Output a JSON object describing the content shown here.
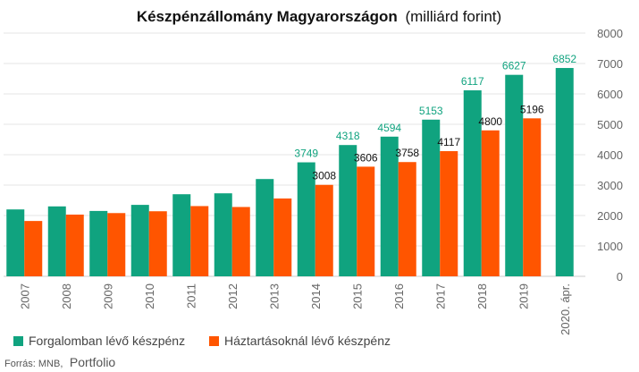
{
  "chart_data": {
    "type": "bar",
    "title": "Készpénzállomány Magyarországon",
    "title_suffix": "(milliárd forint)",
    "categories": [
      "2007",
      "2008",
      "2009",
      "2010",
      "2011",
      "2012",
      "2013",
      "2014",
      "2015",
      "2016",
      "2017",
      "2018",
      "2019",
      "2020. ápr."
    ],
    "series": [
      {
        "name": "Forgalomban lévő készpénz",
        "color": "#10a37f",
        "values": [
          2200,
          2300,
          2150,
          2350,
          2700,
          2730,
          3200,
          3749,
          4318,
          4594,
          5153,
          6117,
          6627,
          6852
        ],
        "labels": [
          "",
          "",
          "",
          "",
          "",
          "",
          "",
          "3749",
          "4318",
          "4594",
          "5153",
          "6117",
          "6627",
          "6852"
        ]
      },
      {
        "name": "Háztartásoknál lévő készpénz",
        "color": "#ff5500",
        "values": [
          1820,
          2030,
          2080,
          2140,
          2310,
          2280,
          2560,
          3008,
          3606,
          3758,
          4117,
          4800,
          5196,
          null
        ],
        "labels": [
          "",
          "",
          "",
          "",
          "",
          "",
          "",
          "3008",
          "3606",
          "3758",
          "4117",
          "4800",
          "5196",
          ""
        ]
      }
    ],
    "ylim": [
      0,
      8000
    ],
    "yticks": [
      0,
      1000,
      2000,
      3000,
      4000,
      5000,
      6000,
      7000,
      8000
    ],
    "y_axis_side": "right",
    "grid": true,
    "legend_position": "bottom-left"
  },
  "source": {
    "prefix": "Forrás: MNB,",
    "brand": "Portfolio"
  }
}
